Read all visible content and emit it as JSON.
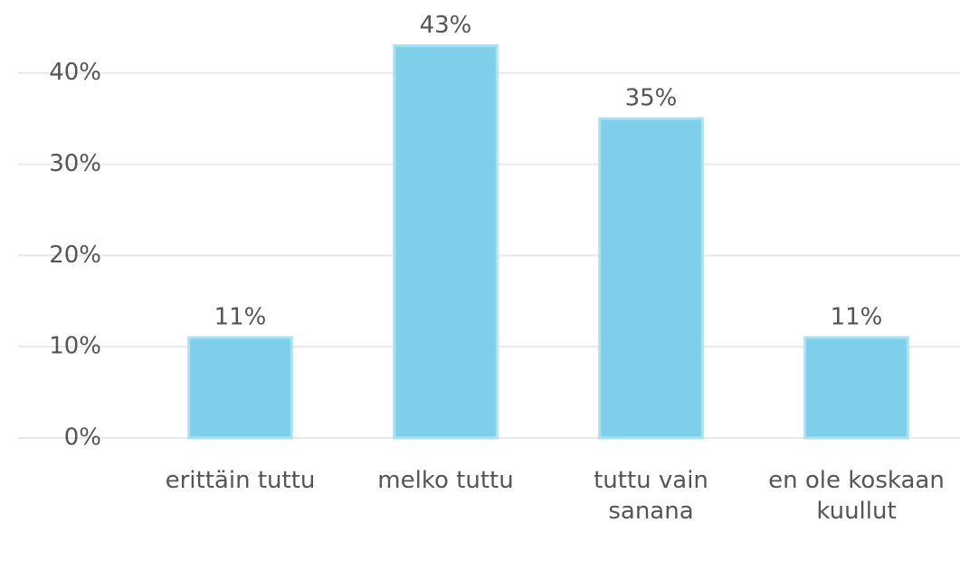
{
  "chart_data": {
    "type": "bar",
    "categories": [
      "erittäin tuttu",
      "melko tuttu",
      "tuttu vain sanana",
      "en ole koskaan kuullut"
    ],
    "values": [
      11,
      43,
      35,
      11
    ],
    "value_labels": [
      "11%",
      "43%",
      "35%",
      "11%"
    ],
    "color": "#7dcfea",
    "ylim": [
      0,
      48
    ],
    "yticks": [
      {
        "value": 0,
        "label": "0%"
      },
      {
        "value": 10,
        "label": "10%"
      },
      {
        "value": 20,
        "label": "20%"
      },
      {
        "value": 30,
        "label": "30%"
      },
      {
        "value": 40,
        "label": "40%"
      }
    ],
    "grid": true
  }
}
